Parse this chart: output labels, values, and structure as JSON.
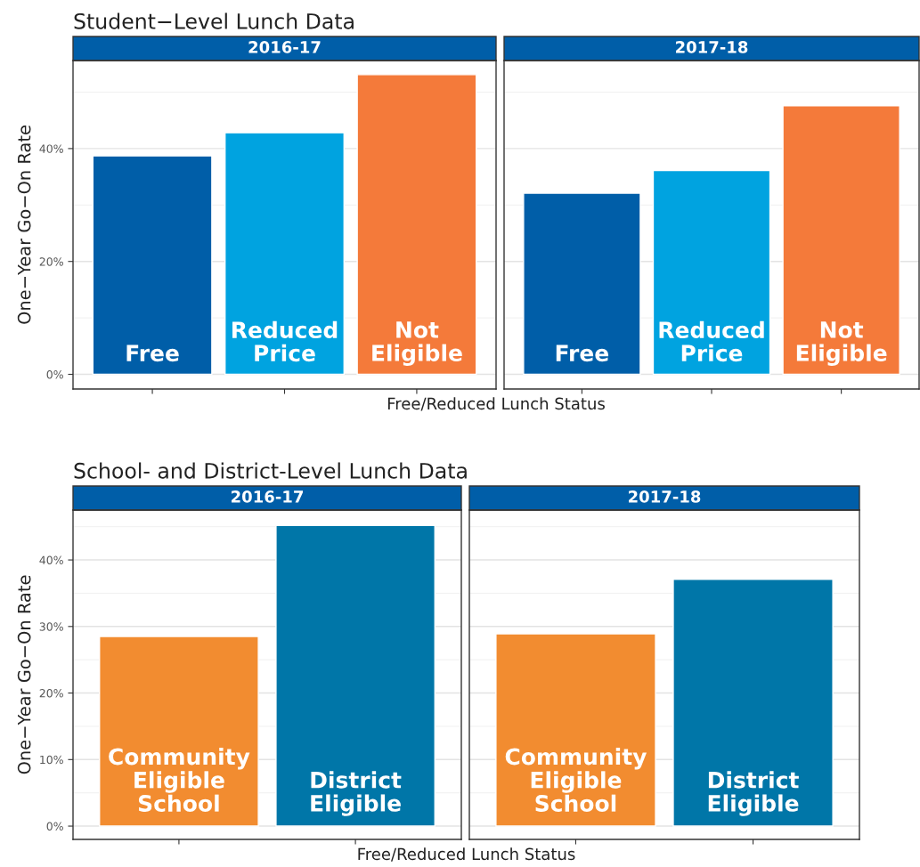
{
  "chart_data": [
    {
      "type": "bar",
      "title": "Student−Level Lunch Data",
      "subtitle": "2016-17",
      "xlabel": "Free/Reduced Lunch Status",
      "ylabel": "One−Year Go−On Rate",
      "categories": [
        "Free",
        "Reduced\nPrice",
        "Not\nEligible"
      ],
      "values": [
        38.7,
        42.8,
        53.1
      ],
      "colors": [
        "#005ea8",
        "#00a3e0",
        "#f47a3a"
      ],
      "ylim": [
        -2.6,
        55.6
      ],
      "yticks": [
        {
          "value": 0,
          "label": "0%"
        },
        {
          "value": 20,
          "label": "20%"
        },
        {
          "value": 40,
          "label": "40%"
        }
      ],
      "tick_labels": "y",
      "grid": true
    },
    {
      "type": "bar",
      "subtitle": "2017-18",
      "categories": [
        "Free",
        "Reduced\nPrice",
        "Not\nEligible"
      ],
      "values": [
        32.1,
        36.1,
        47.6
      ],
      "colors": [
        "#005ea8",
        "#00a3e0",
        "#f47a3a"
      ],
      "ylim": [
        -2.6,
        55.6
      ],
      "yticks": [
        {
          "value": 0,
          "label": null
        },
        {
          "value": 20,
          "label": null
        },
        {
          "value": 40,
          "label": null
        }
      ],
      "tick_labels": false,
      "grid": true
    },
    {
      "type": "bar",
      "title": "School- and District-Level Lunch Data",
      "subtitle": "2016-17",
      "xlabel": "Free/Reduced Lunch Status",
      "ylabel": "One−Year Go−On Rate",
      "categories": [
        "Community\nEligible\nSchool",
        "District\nEligible"
      ],
      "values": [
        28.5,
        45.2
      ],
      "colors": [
        "#f28c30",
        "#0076a8"
      ],
      "ylim": [
        -2.0,
        47.5
      ],
      "yticks": [
        {
          "value": 0,
          "label": "0%"
        },
        {
          "value": 10,
          "label": "10%"
        },
        {
          "value": 20,
          "label": "20%"
        },
        {
          "value": 30,
          "label": "30%"
        },
        {
          "value": 40,
          "label": "40%"
        }
      ],
      "tick_labels": "y",
      "grid": true
    },
    {
      "type": "bar",
      "subtitle": "2017-18",
      "categories": [
        "Community\nEligible\nSchool",
        "District\nEligible"
      ],
      "values": [
        28.9,
        37.1
      ],
      "colors": [
        "#f28c30",
        "#0076a8"
      ],
      "ylim": [
        -2.0,
        47.5
      ],
      "yticks": [
        {
          "value": 0,
          "label": null
        },
        {
          "value": 10,
          "label": null
        },
        {
          "value": 20,
          "label": null
        },
        {
          "value": 30,
          "label": null
        },
        {
          "value": 40,
          "label": null
        }
      ],
      "tick_labels": false,
      "grid": true
    }
  ]
}
